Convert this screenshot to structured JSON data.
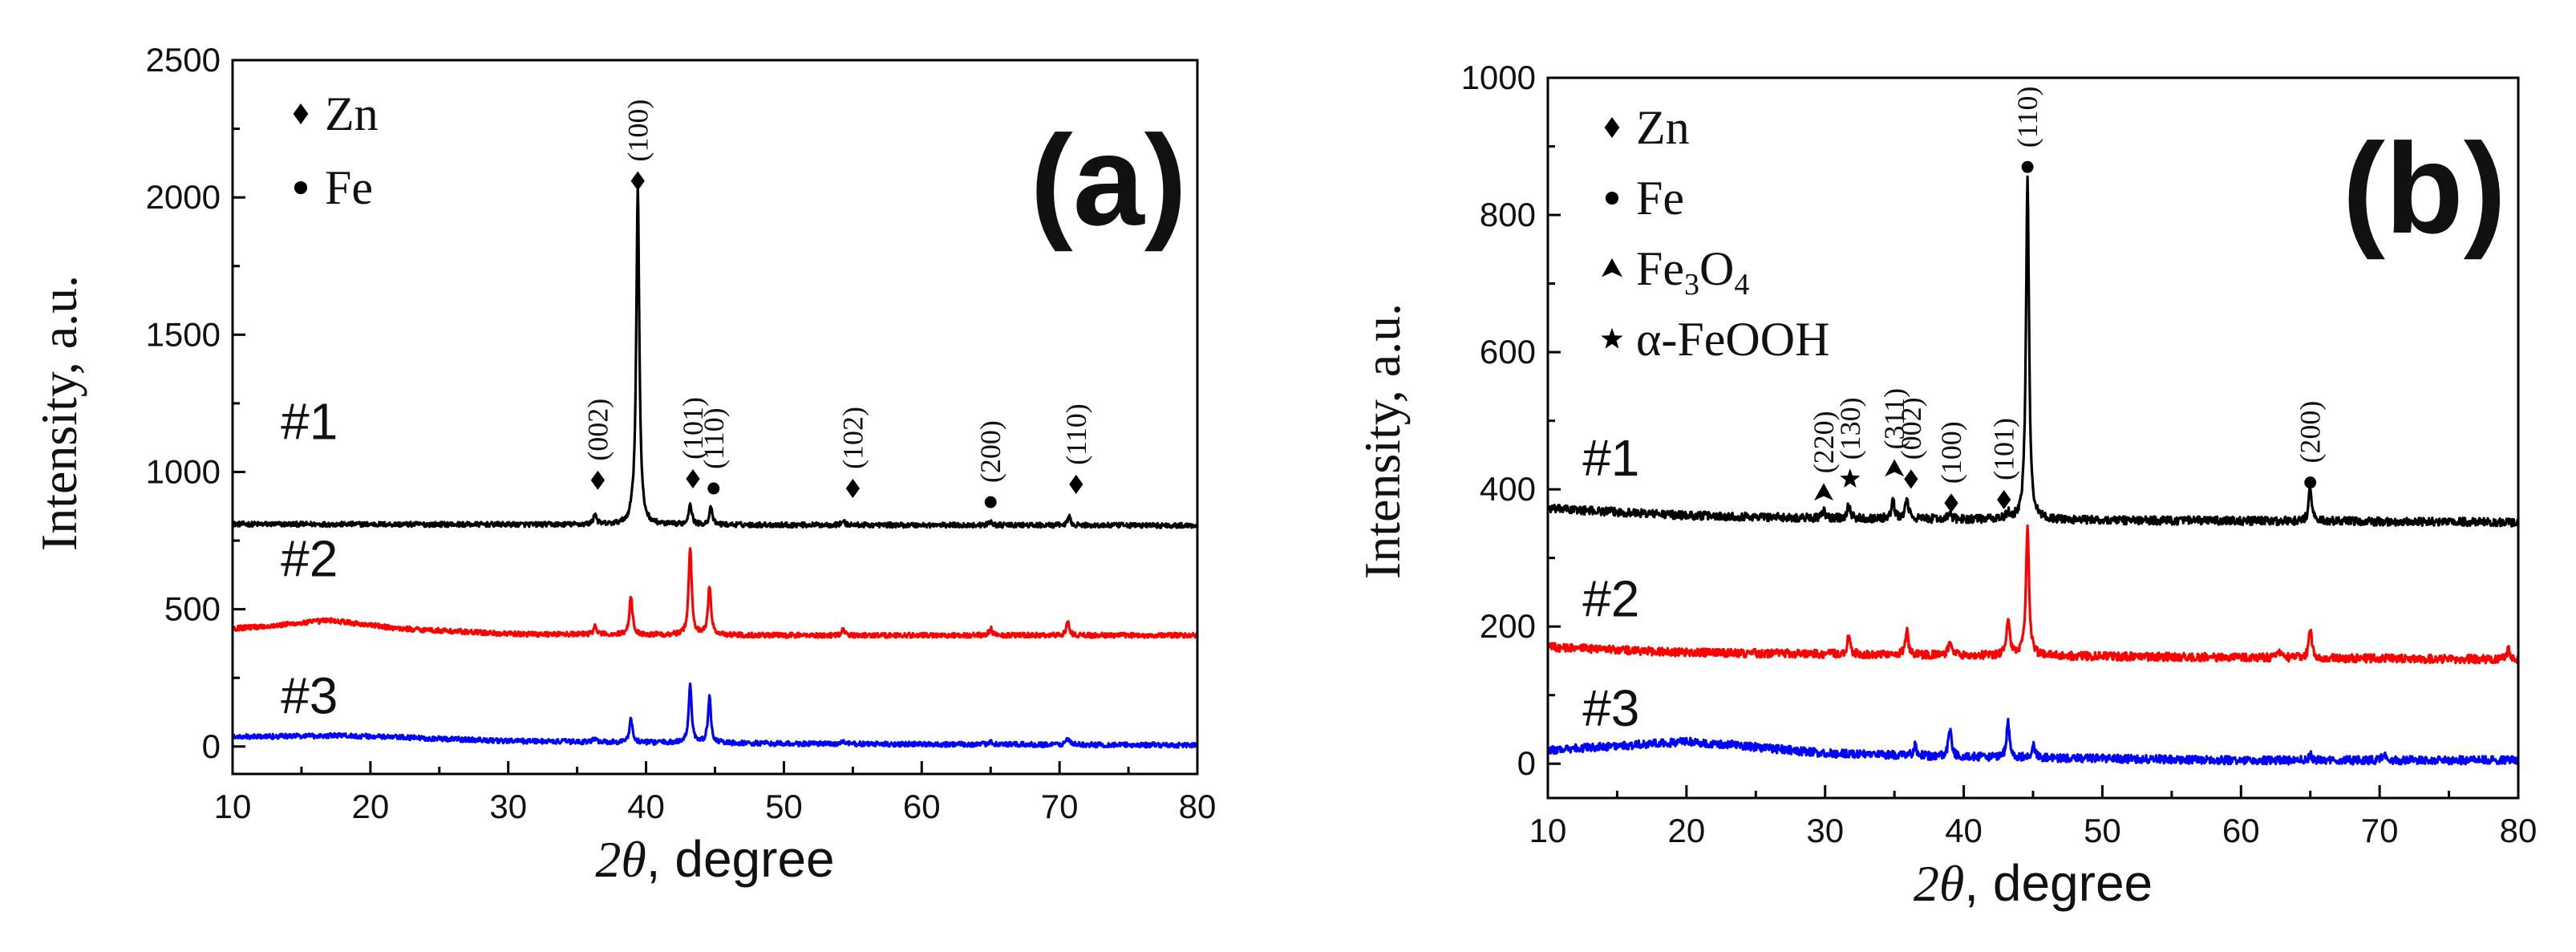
{
  "chart_data": [
    {
      "type": "line",
      "panel_label": "(a)",
      "xlabel_symbol": "2θ",
      "xlabel_text": ", degree",
      "ylabel": "Intensity, a.u.",
      "xlim": [
        10,
        80
      ],
      "ylim": [
        -100,
        2500
      ],
      "xticks": [
        10,
        20,
        30,
        40,
        50,
        60,
        70,
        80
      ],
      "yticks": [
        0,
        500,
        1000,
        1500,
        2000,
        2500
      ],
      "legend_position": "top-left",
      "legend": [
        {
          "marker": "diamond",
          "label": "Zn"
        },
        {
          "marker": "circle",
          "label": "Fe"
        }
      ],
      "series": [
        {
          "name": "#1",
          "color": "#000000",
          "label_pos": [
            13.5,
            1120
          ],
          "baseline": [
            [
              10,
              810
            ],
            [
              80,
              805
            ]
          ],
          "peaks": [
            [
              36.3,
              40
            ],
            [
              39.0,
              22
            ],
            [
              39.4,
              1240
            ],
            [
              43.2,
              80
            ],
            [
              44.7,
              60
            ],
            [
              54.3,
              15
            ],
            [
              65.0,
              15
            ],
            [
              70.7,
              30
            ]
          ]
        },
        {
          "name": "#2",
          "color": "#ff0000",
          "label_pos": [
            13.5,
            620
          ],
          "baseline": [
            [
              10,
              430
            ],
            [
              13,
              440
            ],
            [
              17,
              460
            ],
            [
              22,
              430
            ],
            [
              30,
              410
            ],
            [
              50,
              405
            ],
            [
              80,
              405
            ]
          ],
          "peaks": [
            [
              36.3,
              30
            ],
            [
              38.9,
              140
            ],
            [
              43.2,
              320
            ],
            [
              44.6,
              180
            ],
            [
              54.3,
              20
            ],
            [
              65.0,
              25
            ],
            [
              70.6,
              50
            ]
          ]
        },
        {
          "name": "#3",
          "color": "#0000ff",
          "label_pos": [
            13.5,
            120
          ],
          "baseline": [
            [
              10,
              35
            ],
            [
              18,
              40
            ],
            [
              30,
              20
            ],
            [
              50,
              10
            ],
            [
              80,
              5
            ]
          ],
          "peaks": [
            [
              36.3,
              15
            ],
            [
              38.9,
              85
            ],
            [
              43.2,
              210
            ],
            [
              44.6,
              165
            ],
            [
              54.3,
              10
            ],
            [
              65.0,
              15
            ],
            [
              70.6,
              25
            ]
          ]
        }
      ],
      "peak_labels": [
        {
          "x": 36.5,
          "y": 970,
          "marker": "diamond",
          "hkl": "(002)"
        },
        {
          "x": 39.4,
          "y": 2060,
          "marker": "diamond",
          "hkl": "(100)"
        },
        {
          "x": 43.4,
          "y": 975,
          "marker": "diamond",
          "hkl": "(101)"
        },
        {
          "x": 44.9,
          "y": 940,
          "marker": "circle",
          "hkl": "(110)"
        },
        {
          "x": 55.0,
          "y": 940,
          "marker": "diamond",
          "hkl": "(102)"
        },
        {
          "x": 65.0,
          "y": 890,
          "marker": "circle",
          "hkl": "(200)"
        },
        {
          "x": 71.2,
          "y": 955,
          "marker": "diamond",
          "hkl": "(110)"
        }
      ]
    },
    {
      "type": "line",
      "panel_label": "(b)",
      "xlabel_symbol": "2θ",
      "xlabel_text": ", degree",
      "ylabel": "Intensity, a.u.",
      "xlim": [
        10,
        80
      ],
      "ylim": [
        -50,
        1000
      ],
      "xticks": [
        10,
        20,
        30,
        40,
        50,
        60,
        70,
        80
      ],
      "yticks": [
        0,
        200,
        400,
        600,
        800,
        1000
      ],
      "legend_position": "top-left",
      "legend": [
        {
          "marker": "diamond",
          "label": "Zn"
        },
        {
          "marker": "circle",
          "label": "Fe"
        },
        {
          "marker": "triangle",
          "label": "Fe",
          "sub1": "3",
          "mid": "O",
          "sub2": "4"
        },
        {
          "marker": "star",
          "label": "α-FeOOH"
        }
      ],
      "series": [
        {
          "name": "#1",
          "color": "#000000",
          "label_pos": [
            12.5,
            420
          ],
          "baseline": [
            [
              10,
              372
            ],
            [
              20,
              362
            ],
            [
              30,
              358
            ],
            [
              50,
              355
            ],
            [
              80,
              352
            ]
          ],
          "peaks": [
            [
              29.9,
              10
            ],
            [
              31.7,
              20
            ],
            [
              34.9,
              25
            ],
            [
              35.9,
              30
            ],
            [
              39.0,
              8
            ],
            [
              43.2,
              8
            ],
            [
              44.6,
              495
            ],
            [
              65.0,
              50
            ]
          ]
        },
        {
          "name": "#2",
          "color": "#ff0000",
          "label_pos": [
            12.5,
            215
          ],
          "baseline": [
            [
              10,
              170
            ],
            [
              20,
              162
            ],
            [
              40,
              158
            ],
            [
              80,
              152
            ]
          ],
          "peaks": [
            [
              31.7,
              25
            ],
            [
              35.9,
              35
            ],
            [
              39.0,
              20
            ],
            [
              43.2,
              55
            ],
            [
              44.6,
              190
            ],
            [
              62.7,
              10
            ],
            [
              65.0,
              40
            ],
            [
              79.3,
              15
            ]
          ]
        },
        {
          "name": "#3",
          "color": "#0000ff",
          "label_pos": [
            12.5,
            55
          ],
          "baseline": [
            [
              10,
              20
            ],
            [
              20,
              32
            ],
            [
              23,
              28
            ],
            [
              30,
              15
            ],
            [
              40,
              10
            ],
            [
              60,
              5
            ],
            [
              80,
              5
            ]
          ],
          "peaks": [
            [
              36.5,
              15
            ],
            [
              39.0,
              40
            ],
            [
              43.2,
              50
            ],
            [
              45.0,
              18
            ],
            [
              65.0,
              8
            ],
            [
              70.3,
              10
            ]
          ]
        }
      ],
      "peak_labels": [
        {
          "x": 29.9,
          "y": 395,
          "marker": "triangle",
          "hkl": "(220)"
        },
        {
          "x": 31.8,
          "y": 415,
          "marker": "star",
          "hkl": "(130)"
        },
        {
          "x": 35.0,
          "y": 430,
          "marker": "triangle",
          "hkl": "(311)"
        },
        {
          "x": 36.2,
          "y": 415,
          "marker": "diamond",
          "hkl": "(002)"
        },
        {
          "x": 39.1,
          "y": 380,
          "marker": "diamond",
          "hkl": "(100)"
        },
        {
          "x": 42.9,
          "y": 385,
          "marker": "diamond",
          "hkl": "(101)"
        },
        {
          "x": 44.6,
          "y": 870,
          "marker": "circle",
          "hkl": "(110)"
        },
        {
          "x": 65.0,
          "y": 410,
          "marker": "circle",
          "hkl": "(200)"
        }
      ]
    }
  ]
}
